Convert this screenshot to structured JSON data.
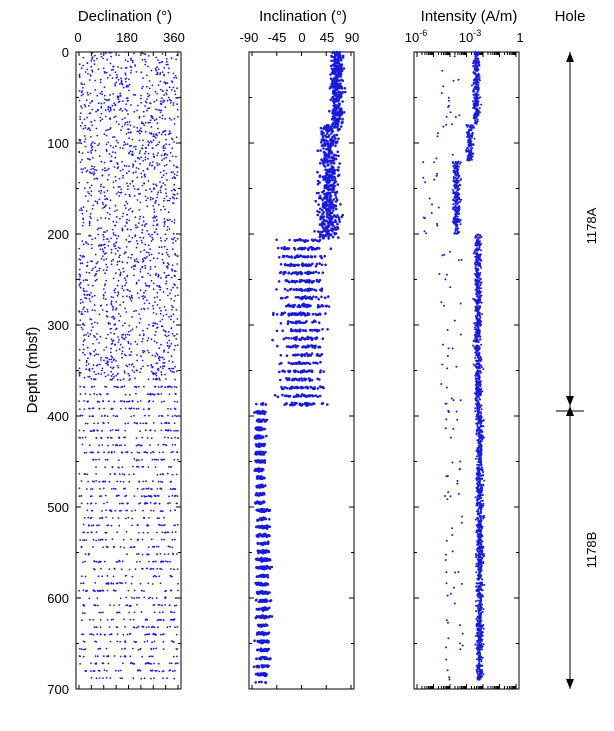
{
  "chart_data": {
    "type": "scatter",
    "ylabel": "Depth (mbsf)",
    "y_ticks": [
      "0",
      "100",
      "200",
      "300",
      "400",
      "500",
      "600",
      "700"
    ],
    "ylim": [
      0,
      700
    ],
    "y_inverted": true,
    "point_color": "#1a1adb",
    "panels": [
      {
        "title": "Declination (°)",
        "x_scale": "linear",
        "xlim": [
          0,
          360
        ],
        "x_ticks": [
          "0",
          "180",
          "360"
        ],
        "depth_bands": [
          {
            "from": 0,
            "to": 80,
            "x_range": [
              0,
              360
            ],
            "description": "scattered"
          },
          {
            "from": 80,
            "to": 360,
            "x_range": [
              0,
              360
            ],
            "description": "scattered"
          },
          {
            "from": 360,
            "to": 690,
            "x_range": [
              0,
              360
            ],
            "description": "horizontal streaks"
          }
        ]
      },
      {
        "title": "Inclination (°)",
        "x_scale": "linear",
        "xlim": [
          -90,
          90
        ],
        "x_ticks": [
          "-90",
          "-45",
          "0",
          "45",
          "90"
        ],
        "depth_bands": [
          {
            "from": 0,
            "to": 80,
            "center": 65,
            "spread": 20
          },
          {
            "from": 80,
            "to": 205,
            "center": 50,
            "spread": 30
          },
          {
            "from": 205,
            "to": 390,
            "center": 0,
            "spread": 70
          },
          {
            "from": 390,
            "to": 500,
            "center": -75,
            "spread": 15
          },
          {
            "from": 500,
            "to": 690,
            "center": -70,
            "spread": 20
          }
        ]
      },
      {
        "title": "Intensity (A/m)",
        "x_scale": "log",
        "xlim": [
          1e-06,
          1
        ],
        "x_ticks": [
          "10-6",
          "10-3",
          "1"
        ],
        "depth_bands": [
          {
            "from": 0,
            "to": 80,
            "center_log10": -2.4
          },
          {
            "from": 80,
            "to": 120,
            "center_log10": -2.8
          },
          {
            "from": 120,
            "to": 200,
            "center_log10": -3.6
          },
          {
            "from": 200,
            "to": 400,
            "center_log10": -2.3
          },
          {
            "from": 400,
            "to": 690,
            "center_log10": -2.2
          }
        ]
      }
    ],
    "hole_panel": {
      "title": "Hole",
      "intervals": [
        {
          "label": "1178A",
          "from": 0,
          "to": 396
        },
        {
          "label": "1178B",
          "from": 396,
          "to": 690
        }
      ]
    }
  }
}
